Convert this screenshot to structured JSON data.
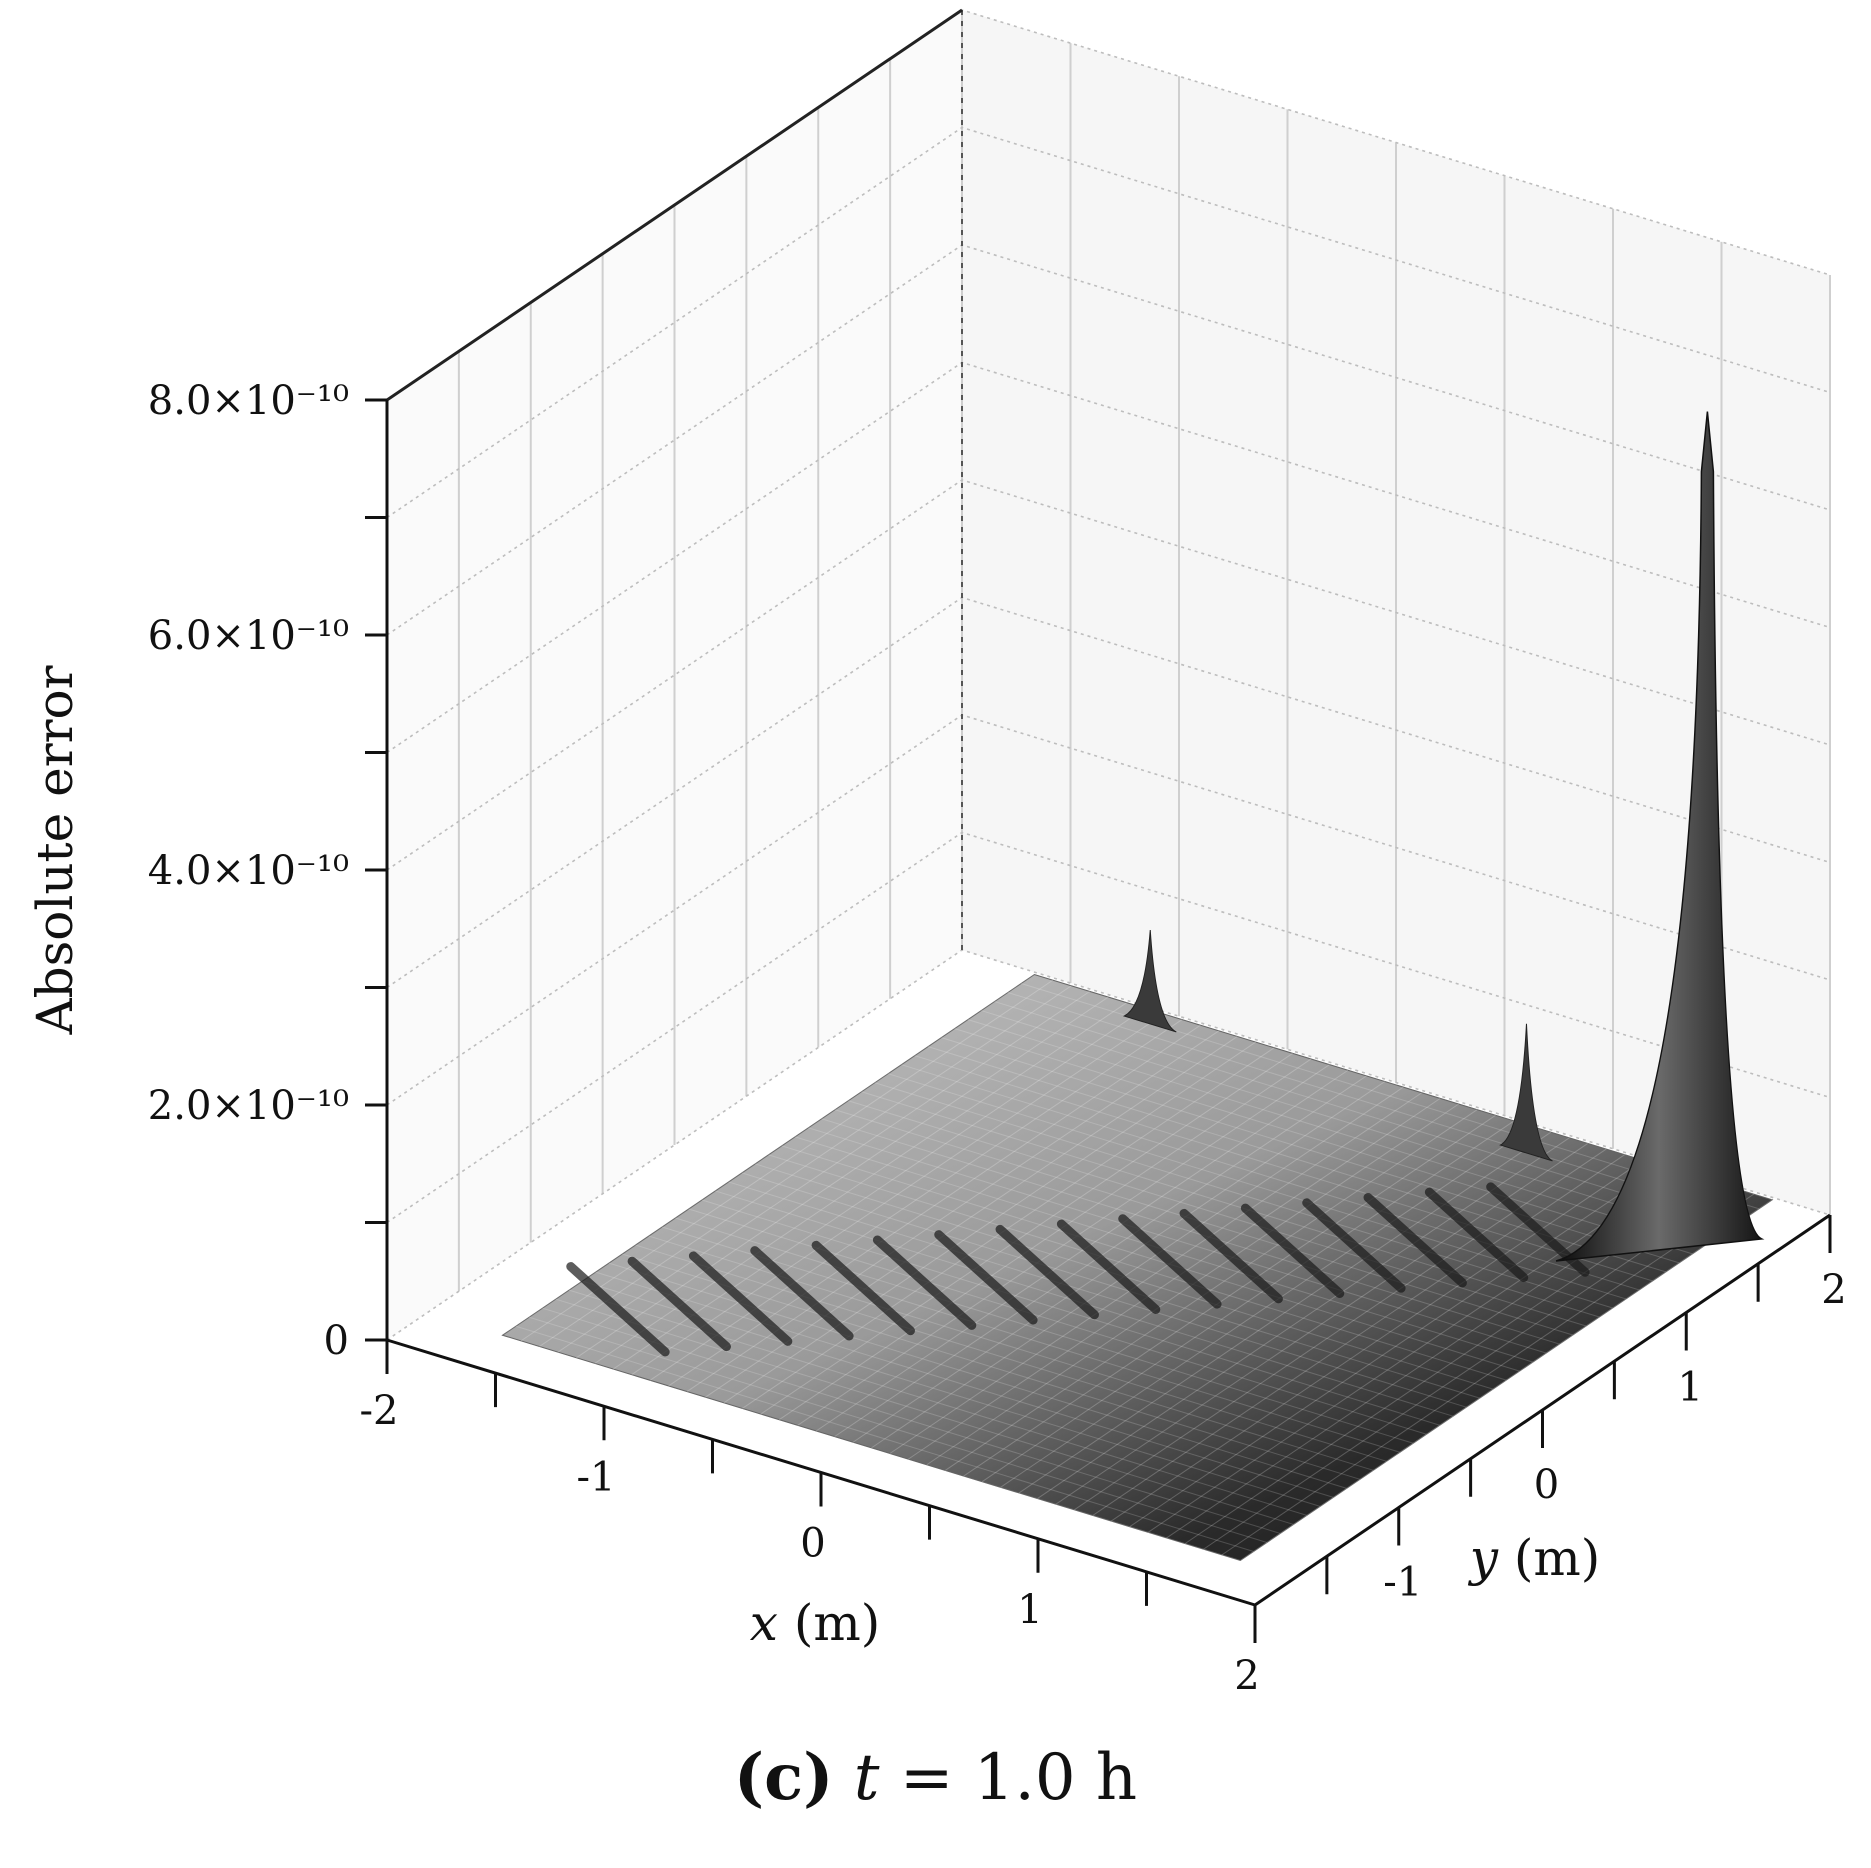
{
  "chart_data": {
    "type": "surface",
    "zlabel": "Absolute error",
    "xlabel": "x (m)",
    "ylabel": "y (m)",
    "z_ticks": [
      "0",
      "2.0×10⁻¹⁰",
      "4.0×10⁻¹⁰",
      "6.0×10⁻¹⁰",
      "8.0×10⁻¹⁰"
    ],
    "x_ticks": [
      "-2",
      "-1",
      "0",
      "1",
      "2"
    ],
    "y_ticks": [
      "-1",
      "0",
      "1",
      "2"
    ],
    "xlim": [
      -2,
      2
    ],
    "ylim": [
      -2,
      2
    ],
    "zlim": [
      0,
      8e-10
    ],
    "grid": true,
    "colormap": "grayscale",
    "surface_summary": {
      "peak": {
        "x": 1.7,
        "y": 1.6,
        "z": 7e-10
      },
      "secondary_peaks": [
        {
          "x": 0.8,
          "y": 1.7,
          "z": 1.2e-10
        },
        {
          "x": -1.0,
          "y": 1.8,
          "z": 9e-11
        }
      ],
      "background_level": 1e-11
    }
  },
  "caption": {
    "panel": "(c)",
    "variable": "t",
    "rest": " = 1.0 h"
  }
}
